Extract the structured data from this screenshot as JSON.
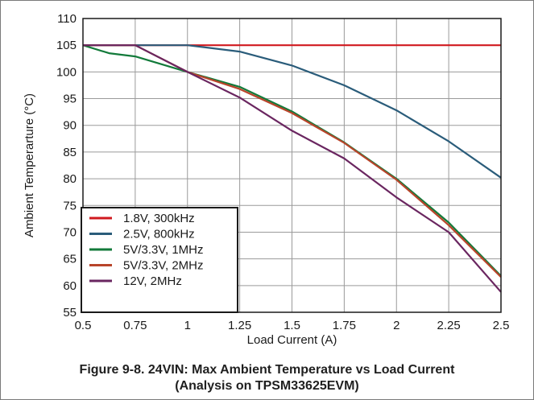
{
  "caption": {
    "line1": "Figure 9-8. 24VIN: Max Ambient Temperature vs Load Current",
    "line2": "(Analysis on TPSM33625EVM)"
  },
  "chart_data": {
    "type": "line",
    "xlabel": "Load Current (A)",
    "ylabel": "Ambient Temperarture (°C)",
    "xlim": [
      0.5,
      2.5
    ],
    "ylim": [
      55,
      110
    ],
    "x_ticks": [
      0.5,
      0.75,
      1,
      1.25,
      1.5,
      1.75,
      2,
      2.25,
      2.5
    ],
    "x_tick_labels": [
      "0.5",
      "0.75",
      "1",
      "1.25",
      "1.5",
      "1.75",
      "2",
      "2.25",
      "2.5"
    ],
    "y_ticks": [
      55,
      60,
      65,
      70,
      75,
      80,
      85,
      90,
      95,
      100,
      105,
      110
    ],
    "grid": true,
    "legend_position": "bottom-left",
    "series": [
      {
        "name": "1.8V, 300kHz",
        "color": "#d0191f",
        "points": [
          [
            0.5,
            105
          ],
          [
            2.5,
            105
          ]
        ]
      },
      {
        "name": "2.5V, 800kHz",
        "color": "#2a5c7a",
        "points": [
          [
            0.5,
            105
          ],
          [
            0.75,
            105
          ],
          [
            1,
            105
          ],
          [
            1.25,
            103.8
          ],
          [
            1.5,
            101.2
          ],
          [
            1.75,
            97.5
          ],
          [
            2,
            92.8
          ],
          [
            2.25,
            87
          ],
          [
            2.5,
            80.2
          ]
        ]
      },
      {
        "name": "5V/3.3V, 1MHz",
        "color": "#127a3a",
        "points": [
          [
            0.5,
            105
          ],
          [
            0.625,
            103.5
          ],
          [
            0.75,
            102.9
          ],
          [
            1,
            100
          ],
          [
            1.25,
            97.2
          ],
          [
            1.5,
            92.6
          ],
          [
            1.75,
            86.8
          ],
          [
            2,
            80
          ],
          [
            2.25,
            71.8
          ],
          [
            2.5,
            61.8
          ]
        ]
      },
      {
        "name": "5V/3.3V, 2MHz",
        "color": "#b8442a",
        "points": [
          [
            0.5,
            105
          ],
          [
            0.75,
            105
          ],
          [
            1,
            100
          ],
          [
            1.25,
            96.8
          ],
          [
            1.5,
            92.3
          ],
          [
            1.75,
            86.7
          ],
          [
            2,
            79.8
          ],
          [
            2.25,
            71.3
          ],
          [
            2.5,
            61.6
          ]
        ]
      },
      {
        "name": "12V, 2MHz",
        "color": "#6a2660",
        "points": [
          [
            0.5,
            105
          ],
          [
            0.75,
            105
          ],
          [
            1,
            100
          ],
          [
            1.25,
            95.2
          ],
          [
            1.5,
            89
          ],
          [
            1.75,
            83.8
          ],
          [
            2,
            76.5
          ],
          [
            2.25,
            70
          ],
          [
            2.5,
            58.8
          ]
        ]
      }
    ]
  }
}
